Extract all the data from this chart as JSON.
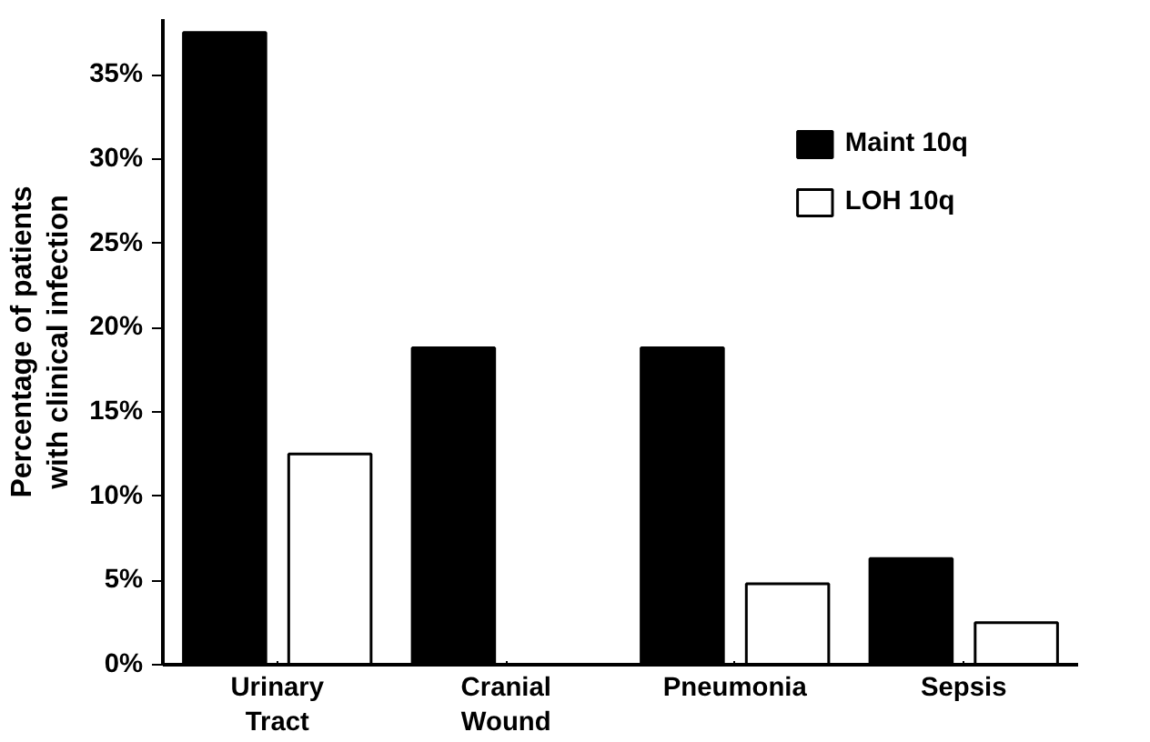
{
  "chart_data": {
    "type": "bar",
    "ylabel": "Percentage of patients\nwith clinical infection",
    "categories": [
      "Urinary\nTract",
      "Cranial\nWound",
      "Pneumonia",
      "Sepsis"
    ],
    "series": [
      {
        "name": "Maint 10q",
        "color": "#000000",
        "values": [
          37.5,
          18.8,
          18.8,
          6.3
        ]
      },
      {
        "name": "LOH 10q",
        "color": "#ffffff",
        "values": [
          12.5,
          null,
          4.8,
          2.5
        ]
      }
    ],
    "ylim": [
      0,
      38.3
    ],
    "yticks": [
      {
        "value": 0,
        "label": "0%"
      },
      {
        "value": 5,
        "label": "5%"
      },
      {
        "value": 10,
        "label": "10%"
      },
      {
        "value": 15,
        "label": "15%"
      },
      {
        "value": 20,
        "label": "20%"
      },
      {
        "value": 25,
        "label": "25%"
      },
      {
        "value": 30,
        "label": "30%"
      },
      {
        "value": 35,
        "label": "35%"
      }
    ],
    "grid": false,
    "legend": "top right"
  }
}
